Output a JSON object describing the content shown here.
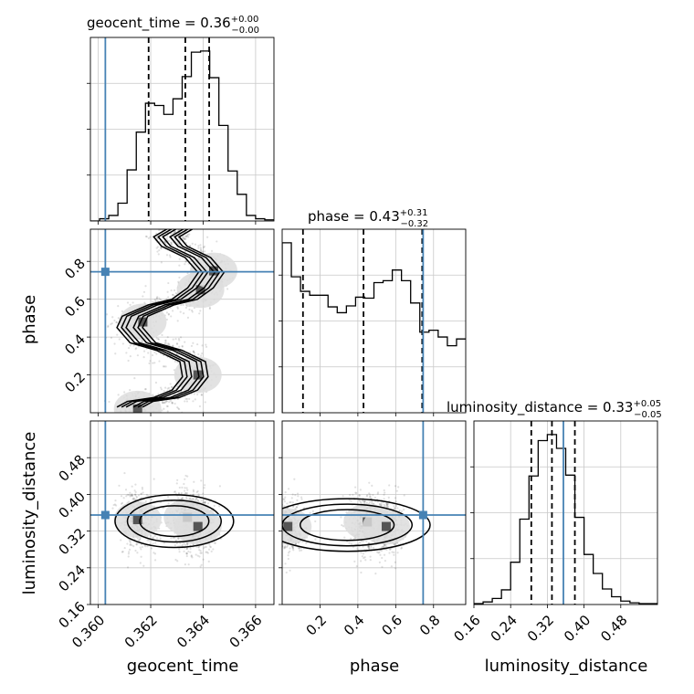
{
  "chart_data": {
    "type": "corner",
    "parameters": [
      "geocent_time",
      "phase",
      "luminosity_distance"
    ],
    "truth_color": "#4682b4",
    "titles": [
      {
        "param": "geocent_time",
        "text": "geocent_time = 0.36",
        "sup": "+0.00",
        "sub": "−0.00"
      },
      {
        "param": "phase",
        "text": "phase = 0.43",
        "sup": "+0.31",
        "sub": "−0.32"
      },
      {
        "param": "luminosity_distance",
        "text": "luminosity_distance = 0.33",
        "sup": "+0.05",
        "sub": "−0.05"
      }
    ],
    "axis_labels": {
      "x": [
        "geocent_time",
        "phase",
        "luminosity_distance"
      ],
      "y": [
        "phase",
        "luminosity_distance"
      ]
    },
    "ranges": {
      "geocent_time": [
        0.3597,
        0.3667
      ],
      "phase": [
        0.0,
        0.97
      ],
      "luminosity_distance": [
        0.16,
        0.56
      ]
    },
    "ticks": {
      "geocent_time": {
        "values": [
          0.36,
          0.362,
          0.364,
          0.366
        ],
        "labels": [
          "0.360",
          "0.362",
          "0.364",
          "0.366"
        ]
      },
      "phase": {
        "values": [
          0.2,
          0.4,
          0.6,
          0.8
        ],
        "labels": [
          "0.2",
          "0.4",
          "0.6",
          "0.8"
        ]
      },
      "luminosity_distance": {
        "values": [
          0.16,
          0.24,
          0.32,
          0.4,
          0.48
        ],
        "labels": [
          "0.16",
          "0.24",
          "0.32",
          "0.40",
          "0.48"
        ]
      }
    },
    "truths": {
      "geocent_time": 0.36027,
      "phase": 0.745,
      "luminosity_distance": 0.355
    },
    "quantiles": {
      "geocent_time": [
        0.36192,
        0.36332,
        0.36423
      ],
      "phase": [
        0.11,
        0.43,
        0.74
      ],
      "luminosity_distance": [
        0.285,
        0.33,
        0.38
      ]
    },
    "marginals": {
      "geocent_time": {
        "edges": [
          0.3597,
          0.36005,
          0.3604,
          0.36075,
          0.3611,
          0.36145,
          0.3618,
          0.36215,
          0.3625,
          0.36285,
          0.3632,
          0.36355,
          0.3639,
          0.36425,
          0.3646,
          0.36495,
          0.3653,
          0.36565,
          0.366,
          0.36635,
          0.3667
        ],
        "counts": [
          0,
          2,
          5,
          16,
          46,
          80,
          106,
          104,
          96,
          110,
          130,
          152,
          153,
          129,
          86,
          45,
          24,
          5,
          2,
          1
        ]
      },
      "phase": {
        "edges": [
          0.0,
          0.0485,
          0.097,
          0.1455,
          0.194,
          0.2425,
          0.291,
          0.3395,
          0.388,
          0.4365,
          0.485,
          0.5335,
          0.582,
          0.6305,
          0.679,
          0.7275,
          0.776,
          0.8245,
          0.873,
          0.9215,
          0.97
        ],
        "counts": [
          175,
          140,
          125,
          121,
          121,
          109,
          103,
          110,
          119,
          118,
          134,
          136,
          147,
          136,
          113,
          83,
          85,
          78,
          69,
          76
        ]
      },
      "luminosity_distance": {
        "edges": [
          0.16,
          0.18,
          0.2,
          0.22,
          0.24,
          0.26,
          0.28,
          0.3,
          0.32,
          0.34,
          0.36,
          0.38,
          0.4,
          0.42,
          0.44,
          0.46,
          0.48,
          0.5,
          0.52,
          0.54,
          0.56
        ],
        "counts": [
          1,
          3,
          7,
          17,
          49,
          99,
          149,
          190,
          197,
          181,
          150,
          101,
          58,
          36,
          18,
          9,
          4,
          2,
          1,
          1
        ]
      }
    },
    "joint": {
      "phase_vs_geocent_time": {
        "x": "geocent_time",
        "y": "phase",
        "density_peaks": [
          {
            "x": 0.3615,
            "y": 0.02
          },
          {
            "x": 0.3617,
            "y": 0.48
          },
          {
            "x": 0.3638,
            "y": 0.2
          },
          {
            "x": 0.3639,
            "y": 0.65
          },
          {
            "x": 0.3644,
            "y": 0.75
          }
        ],
        "ridge": [
          [
            0.3612,
            0.03
          ],
          [
            0.3616,
            0.06
          ],
          [
            0.3626,
            0.08
          ],
          [
            0.3633,
            0.12
          ],
          [
            0.3637,
            0.19
          ],
          [
            0.3636,
            0.27
          ],
          [
            0.3627,
            0.33
          ],
          [
            0.3617,
            0.37
          ],
          [
            0.3612,
            0.45
          ],
          [
            0.3614,
            0.51
          ],
          [
            0.3624,
            0.57
          ],
          [
            0.3633,
            0.6
          ],
          [
            0.3639,
            0.66
          ],
          [
            0.3643,
            0.74
          ],
          [
            0.3638,
            0.82
          ],
          [
            0.3629,
            0.88
          ],
          [
            0.3626,
            0.93
          ],
          [
            0.3631,
            0.97
          ]
        ]
      },
      "luminosity_distance_vs_geocent_time": {
        "x": "geocent_time",
        "y": "luminosity_distance",
        "density_peaks": [
          {
            "x": 0.3615,
            "y": 0.345
          },
          {
            "x": 0.3634,
            "y": 0.35
          },
          {
            "x": 0.3638,
            "y": 0.33
          }
        ]
      },
      "luminosity_distance_vs_phase": {
        "x": "phase",
        "y": "luminosity_distance",
        "density_peaks": [
          {
            "x": 0.03,
            "y": 0.33
          },
          {
            "x": 0.45,
            "y": 0.34
          },
          {
            "x": 0.55,
            "y": 0.33
          }
        ]
      }
    }
  }
}
